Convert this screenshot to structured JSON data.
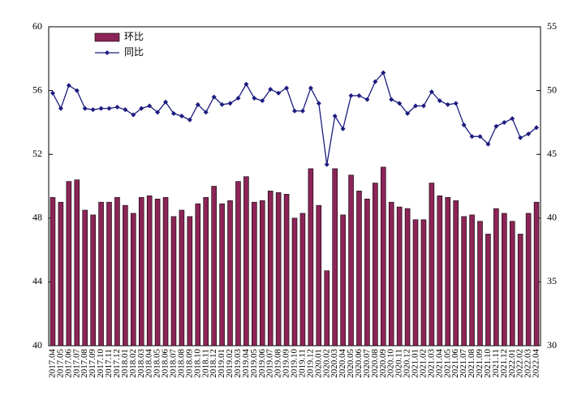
{
  "chart_data": {
    "type": "bar",
    "categories": [
      "2017.04",
      "2017.05",
      "2017.06",
      "2017.07",
      "2017.08",
      "2017.09",
      "2017.10",
      "2017.11",
      "2017.12",
      "2018.01",
      "2018.02",
      "2018.03",
      "2018.04",
      "2018.05",
      "2018.06",
      "2018.07",
      "2018.08",
      "2018.09",
      "2018.10",
      "2018.11",
      "2018.12",
      "2019.01",
      "2019.02",
      "2019.03",
      "2019.04",
      "2019.05",
      "2019.06",
      "2019.07",
      "2019.08",
      "2019.09",
      "2019.10",
      "2019.11",
      "2019.12",
      "2020.01",
      "2020.02",
      "2020.03",
      "2020.04",
      "2020.05",
      "2020.06",
      "2020.07",
      "2020.08",
      "2020.09",
      "2020.10",
      "2020.11",
      "2020.12",
      "2021.01",
      "2021.02",
      "2021.03",
      "2021.04",
      "2021.05",
      "2021.06",
      "2021.07",
      "2021.08",
      "2021.09",
      "2021.10",
      "2021.11",
      "2021.12",
      "2022.01",
      "2022.02",
      "2022.03",
      "2022.04"
    ],
    "series": [
      {
        "name": "环比",
        "type": "bar",
        "color": "#8c2457",
        "values": [
          49.3,
          49.0,
          50.3,
          50.4,
          48.5,
          48.2,
          49.0,
          49.0,
          49.3,
          48.8,
          48.3,
          49.3,
          49.4,
          49.2,
          49.3,
          48.1,
          48.5,
          48.1,
          48.9,
          49.3,
          50.0,
          48.9,
          49.1,
          50.3,
          50.6,
          49.0,
          49.1,
          49.7,
          49.6,
          49.5,
          48.0,
          48.3,
          51.1,
          48.8,
          44.7,
          51.1,
          48.2,
          50.7,
          49.7,
          49.2,
          50.2,
          51.2,
          49.0,
          48.7,
          48.6,
          47.9,
          47.9,
          50.2,
          49.4,
          49.3,
          49.1,
          48.1,
          48.2,
          47.8,
          47.0,
          48.6,
          48.3,
          47.8,
          47.0,
          48.3,
          49.0
        ]
      },
      {
        "name": "同比",
        "type": "line",
        "axis": "y2",
        "color": "#1c1c80",
        "values": [
          49.8,
          48.6,
          50.4,
          50.0,
          48.6,
          48.5,
          48.6,
          48.6,
          48.7,
          48.5,
          48.1,
          48.6,
          48.8,
          48.3,
          49.1,
          48.2,
          48.0,
          47.7,
          48.9,
          48.3,
          49.5,
          48.9,
          49.0,
          49.4,
          50.5,
          49.4,
          49.2,
          50.1,
          49.8,
          50.2,
          48.4,
          48.4,
          50.2,
          49.0,
          44.2,
          48.0,
          47.0,
          49.6,
          49.6,
          49.3,
          50.7,
          51.4,
          49.3,
          49.0,
          48.2,
          48.8,
          48.8,
          49.9,
          49.2,
          48.9,
          49.0,
          47.3,
          46.4,
          46.4,
          45.8,
          47.2,
          47.5,
          47.8,
          46.3,
          46.6,
          47.1
        ]
      }
    ],
    "ylim": [
      40,
      60
    ],
    "yticks": [
      40,
      44,
      48,
      52,
      56,
      60
    ],
    "y2lim": [
      30,
      55
    ],
    "y2ticks": [
      30,
      35,
      40,
      45,
      50,
      55
    ],
    "legend": "upper left"
  }
}
